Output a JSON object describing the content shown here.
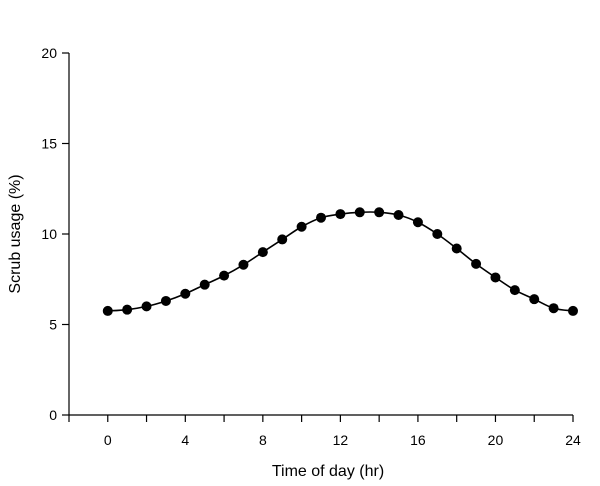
{
  "chart_data": {
    "type": "line",
    "title": "",
    "xlabel": "Time of day (hr)",
    "ylabel": "Scrub usage (%)",
    "xlim": [
      -2,
      24
    ],
    "ylim": [
      0,
      20
    ],
    "xticks": [
      0,
      4,
      8,
      12,
      16,
      20,
      24
    ],
    "yticks": [
      0,
      5,
      10,
      15,
      20
    ],
    "grid": false,
    "legend": "none",
    "series": [
      {
        "color": "#000000",
        "marker": "filled-circle",
        "x": [
          0,
          1,
          2,
          3,
          4,
          5,
          6,
          7,
          8,
          9,
          10,
          11,
          12,
          13,
          14,
          15,
          16,
          17,
          18,
          19,
          20,
          21,
          22,
          23,
          24
        ],
        "values": [
          5.75,
          5.82,
          6.0,
          6.3,
          6.7,
          7.2,
          7.7,
          8.3,
          9.0,
          9.7,
          10.4,
          10.9,
          11.1,
          11.2,
          11.2,
          11.05,
          10.65,
          10.0,
          9.2,
          8.35,
          7.6,
          6.9,
          6.4,
          5.9,
          5.75
        ]
      }
    ]
  }
}
